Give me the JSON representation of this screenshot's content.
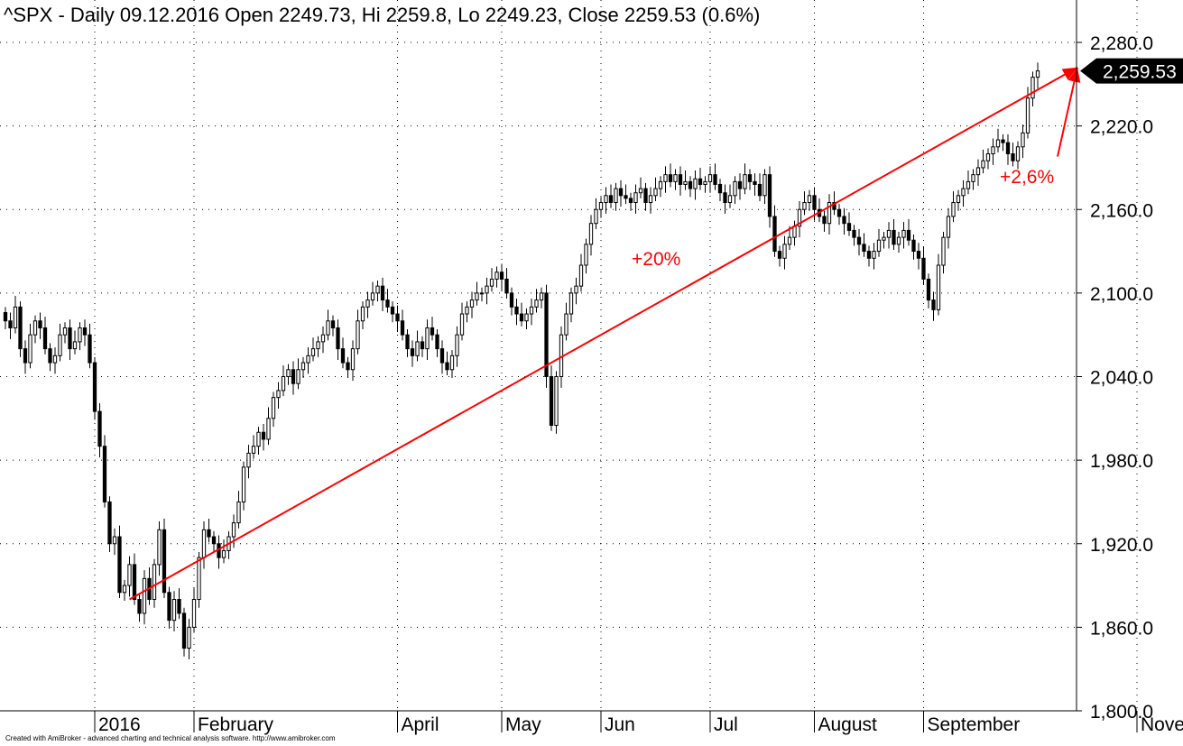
{
  "chart_data": {
    "type": "candlestick",
    "title": "^SPX - Daily 09.12.2016 Open 2249.73, Hi 2259.8, Lo 2249.23, Close 2259.53 (0.6%)",
    "ylim": [
      1800,
      2300
    ],
    "y_ticks": [
      "2,280.0",
      "2,220.0",
      "2,160.0",
      "2,100.0",
      "2,040.0",
      "1,980.0",
      "1,920.0",
      "1,860.0",
      "1,800.0"
    ],
    "y_tick_values": [
      2280,
      2220,
      2160,
      2100,
      2040,
      1980,
      1920,
      1860,
      1800
    ],
    "grid": true,
    "x_labels": [
      "2016",
      "February",
      "April",
      "May",
      "Jun",
      "Jul",
      "August",
      "September",
      "November"
    ],
    "x_label_index": [
      18,
      38,
      79,
      100,
      120,
      142,
      163,
      185,
      228
    ],
    "last_value_label": "2,259.53",
    "last_value": 2259.53,
    "close": [
      2080,
      2075,
      2090,
      2060,
      2050,
      2070,
      2080,
      2075,
      2060,
      2050,
      2055,
      2070,
      2075,
      2060,
      2065,
      2075,
      2070,
      2050,
      2015,
      1990,
      1950,
      1920,
      1925,
      1885,
      1890,
      1905,
      1880,
      1870,
      1895,
      1880,
      1905,
      1930,
      1885,
      1865,
      1880,
      1870,
      1845,
      1860,
      1880,
      1910,
      1930,
      1925,
      1920,
      1910,
      1915,
      1925,
      1935,
      1950,
      1975,
      1985,
      1990,
      2000,
      1995,
      2010,
      2025,
      2030,
      2040,
      2045,
      2035,
      2045,
      2050,
      2055,
      2060,
      2065,
      2070,
      2080,
      2075,
      2060,
      2050,
      2045,
      2060,
      2080,
      2090,
      2095,
      2100,
      2105,
      2095,
      2090,
      2085,
      2080,
      2070,
      2060,
      2055,
      2065,
      2060,
      2075,
      2070,
      2060,
      2050,
      2045,
      2055,
      2070,
      2085,
      2090,
      2095,
      2100,
      2100,
      2105,
      2110,
      2115,
      2110,
      2100,
      2090,
      2085,
      2080,
      2085,
      2090,
      2095,
      2100,
      2040,
      2005,
      2040,
      2070,
      2085,
      2100,
      2105,
      2120,
      2135,
      2150,
      2160,
      2165,
      2170,
      2165,
      2175,
      2170,
      2168,
      2165,
      2172,
      2175,
      2165,
      2170,
      2175,
      2180,
      2185,
      2180,
      2185,
      2178,
      2180,
      2175,
      2182,
      2178,
      2180,
      2185,
      2178,
      2172,
      2165,
      2170,
      2180,
      2175,
      2185,
      2180,
      2178,
      2170,
      2185,
      2155,
      2130,
      2125,
      2135,
      2140,
      2148,
      2160,
      2165,
      2170,
      2160,
      2155,
      2150,
      2165,
      2160,
      2155,
      2150,
      2145,
      2140,
      2135,
      2130,
      2125,
      2130,
      2138,
      2140,
      2145,
      2135,
      2140,
      2145,
      2138,
      2130,
      2125,
      2110,
      2095,
      2088,
      2120,
      2140,
      2155,
      2165,
      2170,
      2175,
      2180,
      2185,
      2190,
      2195,
      2200,
      2205,
      2210,
      2208,
      2200,
      2195,
      2205,
      2215,
      2240,
      2255,
      2259.53
    ],
    "lines": [
      {
        "from": [
          25,
          1880
        ],
        "to": [
          216,
          2262
        ],
        "label": "+20%"
      },
      {
        "from": [
          212,
          2198
        ],
        "to": [
          216,
          2262
        ],
        "label": "+2,6%"
      }
    ]
  },
  "credit_text": "Created with AmiBroker - advanced charting and technical analysis software. http://www.amibroker.com",
  "colors": {
    "candle": "#000000",
    "up_fill": "#ffffff",
    "down_fill": "#000000",
    "annotation": "#ff0000",
    "grid": "#000000"
  }
}
